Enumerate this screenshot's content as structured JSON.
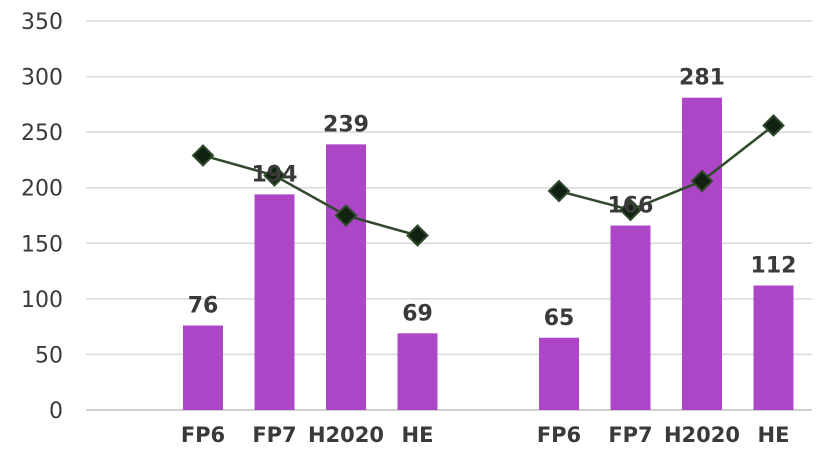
{
  "chart_data": {
    "type": "bar",
    "ylim": [
      0,
      350
    ],
    "yticks": [
      0,
      50,
      100,
      150,
      200,
      250,
      300,
      350
    ],
    "grid": true,
    "groups": [
      {
        "categories": [
          "FP6",
          "FP7",
          "H2020",
          "HE"
        ],
        "bar_values": [
          76,
          194,
          239,
          69
        ],
        "line_values": [
          229,
          211,
          175,
          157
        ]
      },
      {
        "categories": [
          "FP6",
          "FP7",
          "H2020",
          "HE"
        ],
        "bar_values": [
          65,
          166,
          281,
          112
        ],
        "line_values": [
          197,
          180,
          206,
          256
        ]
      }
    ],
    "colors": {
      "bar": "#ac46c6",
      "line": "#2f4a2a",
      "marker": "#122212"
    }
  }
}
